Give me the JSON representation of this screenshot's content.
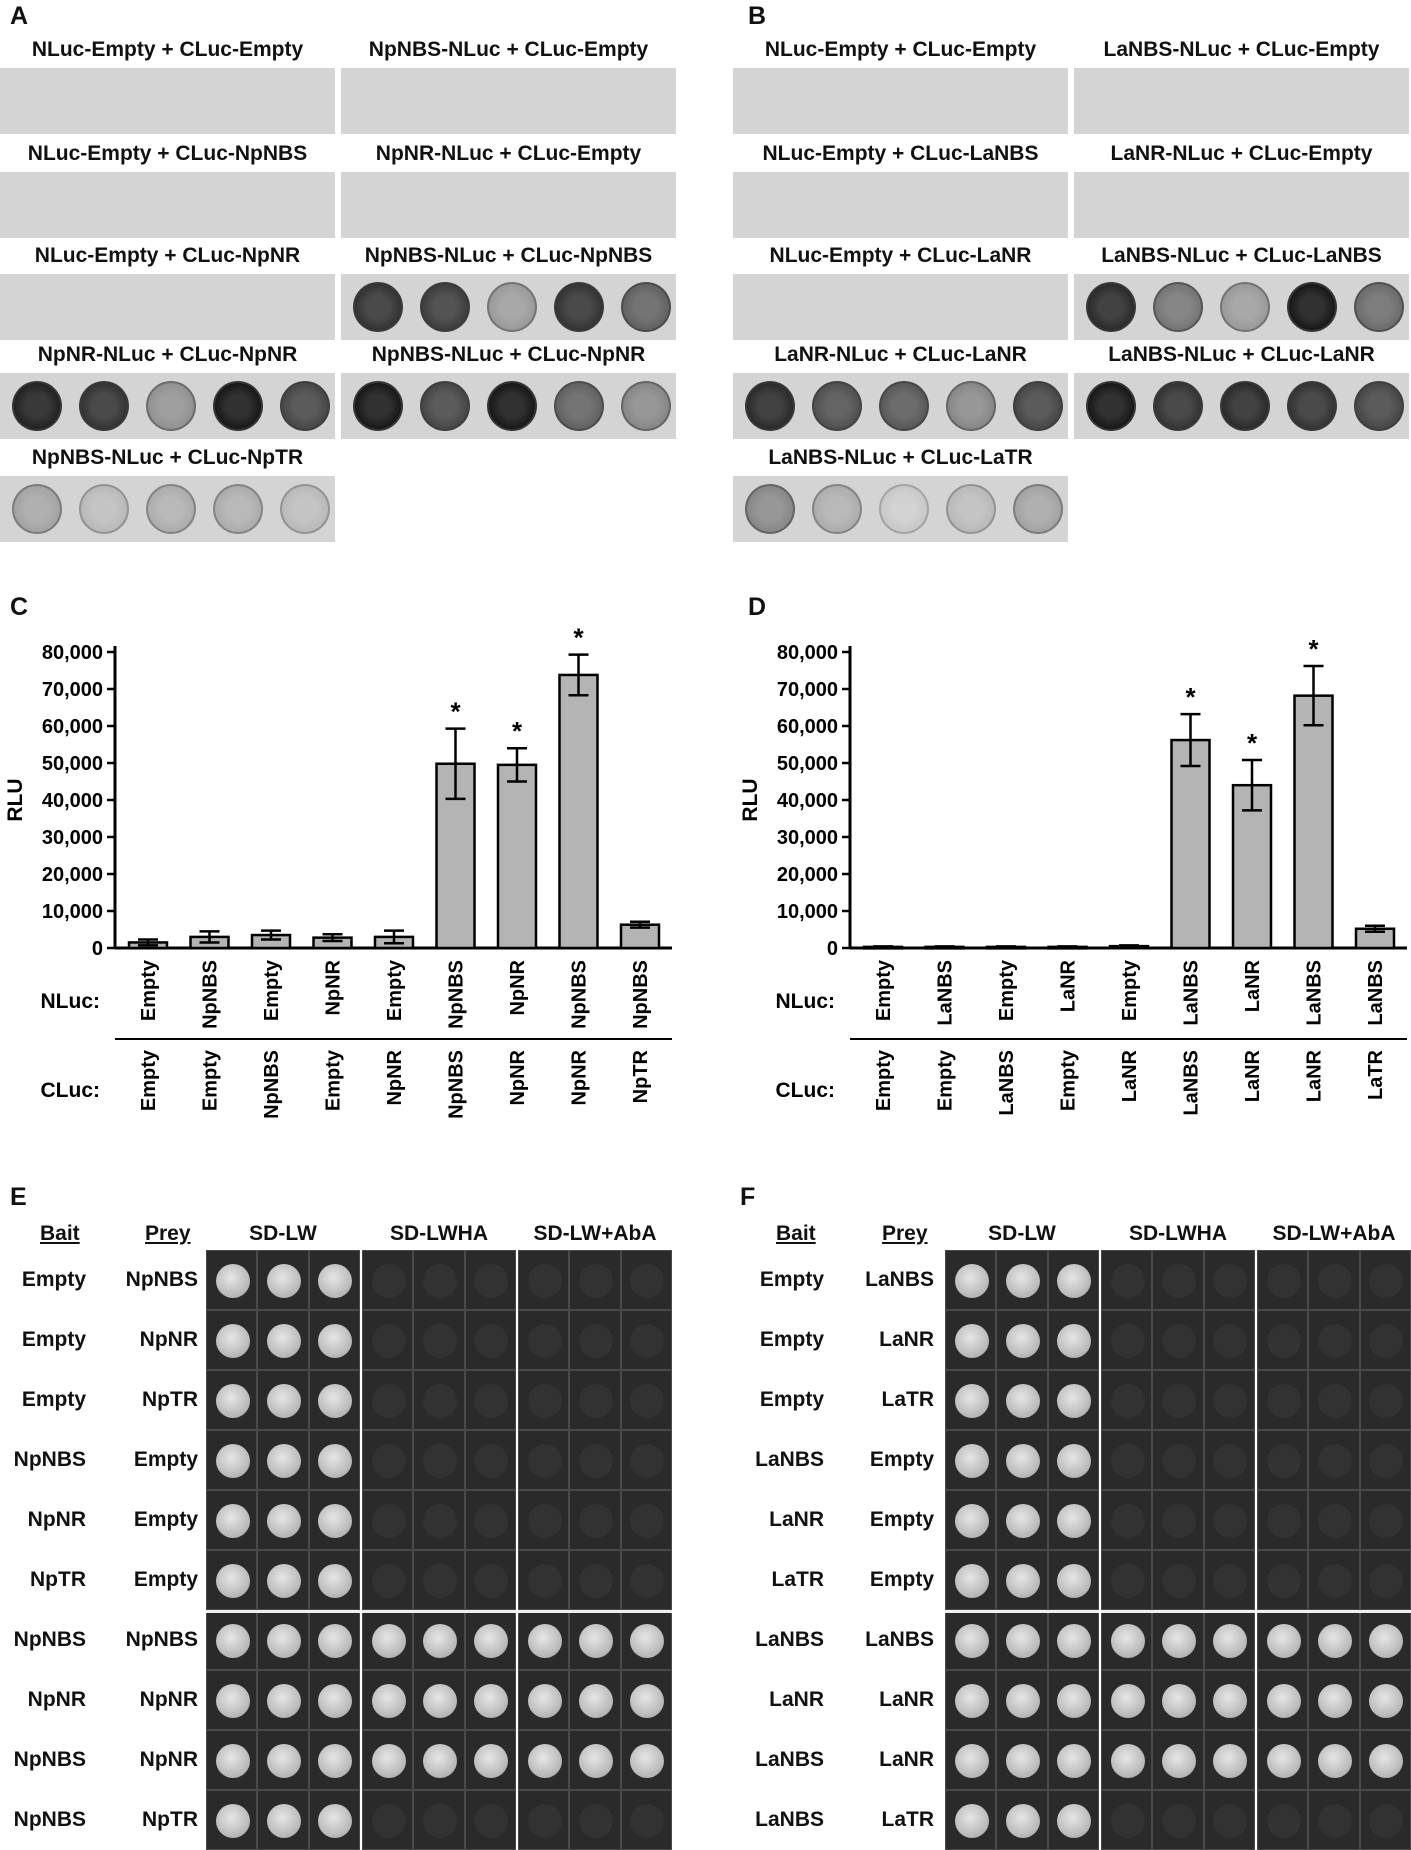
{
  "panels": {
    "A": {
      "letter": "A",
      "blots": [
        {
          "title": "NLuc-Empty + CLuc-Empty",
          "spots": []
        },
        {
          "title": "NpNBS-NLuc + CLuc-Empty",
          "spots": []
        },
        {
          "title": "NLuc-Empty + CLuc-NpNBS",
          "spots": []
        },
        {
          "title": "NpNR-NLuc + CLuc-Empty",
          "spots": []
        },
        {
          "title": "NLuc-Empty + CLuc-NpNR",
          "spots": []
        },
        {
          "title": "NpNBS-NLuc + CLuc-NpNBS",
          "spots": [
            0.8,
            0.75,
            0.25,
            0.8,
            0.55
          ]
        },
        {
          "title": "NpNR-NLuc + CLuc-NpNR",
          "spots": [
            0.9,
            0.8,
            0.3,
            0.95,
            0.7
          ]
        },
        {
          "title": "NpNBS-NLuc + CLuc-NpNR",
          "spots": [
            0.95,
            0.7,
            0.95,
            0.55,
            0.35
          ]
        },
        {
          "title": "NpNBS-NLuc + CLuc-NpTR",
          "spots": [
            0.2,
            0.08,
            0.15,
            0.15,
            0.08
          ]
        }
      ]
    },
    "B": {
      "letter": "B",
      "blots": [
        {
          "title": "NLuc-Empty + CLuc-Empty",
          "spots": []
        },
        {
          "title": "LaNBS-NLuc + CLuc-Empty",
          "spots": []
        },
        {
          "title": "NLuc-Empty + CLuc-LaNBS",
          "spots": []
        },
        {
          "title": "LaNR-NLuc + CLuc-Empty",
          "spots": []
        },
        {
          "title": "NLuc-Empty + CLuc-LaNR",
          "spots": []
        },
        {
          "title": "LaNBS-NLuc + CLuc-LaNBS",
          "spots": [
            0.85,
            0.45,
            0.25,
            0.95,
            0.5
          ]
        },
        {
          "title": "LaNR-NLuc + CLuc-LaNR",
          "spots": [
            0.85,
            0.65,
            0.6,
            0.35,
            0.7
          ]
        },
        {
          "title": "LaNBS-NLuc + CLuc-LaNR",
          "spots": [
            0.95,
            0.8,
            0.85,
            0.8,
            0.7
          ]
        },
        {
          "title": "LaNBS-NLuc + CLuc-LaTR",
          "spots": [
            0.35,
            0.15,
            0.0,
            0.08,
            0.2
          ]
        }
      ]
    },
    "C": {
      "letter": "C"
    },
    "D": {
      "letter": "D"
    },
    "E": {
      "letter": "E",
      "headers": {
        "bait": "Bait",
        "prey": "Prey",
        "media": [
          "SD-LW",
          "SD-LWHA",
          "SD-LW+AbA"
        ]
      },
      "rows": [
        {
          "bait": "Empty",
          "prey": "NpNBS",
          "growth": [
            1,
            0,
            0
          ]
        },
        {
          "bait": "Empty",
          "prey": "NpNR",
          "growth": [
            1,
            0,
            0
          ]
        },
        {
          "bait": "Empty",
          "prey": "NpTR",
          "growth": [
            1,
            0,
            0
          ]
        },
        {
          "bait": "NpNBS",
          "prey": "Empty",
          "growth": [
            1,
            0,
            0
          ]
        },
        {
          "bait": "NpNR",
          "prey": "Empty",
          "growth": [
            1,
            0,
            0
          ]
        },
        {
          "bait": "NpTR",
          "prey": "Empty",
          "growth": [
            1,
            0,
            0
          ]
        },
        {
          "bait": "NpNBS",
          "prey": "NpNBS",
          "growth": [
            1,
            1,
            1
          ]
        },
        {
          "bait": "NpNR",
          "prey": "NpNR",
          "growth": [
            1,
            1,
            1
          ]
        },
        {
          "bait": "NpNBS",
          "prey": "NpNR",
          "growth": [
            1,
            1,
            1
          ]
        },
        {
          "bait": "NpNBS",
          "prey": "NpTR",
          "growth": [
            1,
            0,
            0
          ]
        }
      ]
    },
    "F": {
      "letter": "F",
      "headers": {
        "bait": "Bait",
        "prey": "Prey",
        "media": [
          "SD-LW",
          "SD-LWHA",
          "SD-LW+AbA"
        ]
      },
      "rows": [
        {
          "bait": "Empty",
          "prey": "LaNBS",
          "growth": [
            1,
            0,
            0
          ]
        },
        {
          "bait": "Empty",
          "prey": "LaNR",
          "growth": [
            1,
            0,
            0
          ]
        },
        {
          "bait": "Empty",
          "prey": "LaTR",
          "growth": [
            1,
            0,
            0
          ]
        },
        {
          "bait": "LaNBS",
          "prey": "Empty",
          "growth": [
            1,
            0,
            0
          ]
        },
        {
          "bait": "LaNR",
          "prey": "Empty",
          "growth": [
            1,
            0,
            0
          ]
        },
        {
          "bait": "LaTR",
          "prey": "Empty",
          "growth": [
            1,
            0,
            0
          ]
        },
        {
          "bait": "LaNBS",
          "prey": "LaNBS",
          "growth": [
            1,
            1,
            1
          ]
        },
        {
          "bait": "LaNR",
          "prey": "LaNR",
          "growth": [
            1,
            1,
            1
          ]
        },
        {
          "bait": "LaNBS",
          "prey": "LaNR",
          "growth": [
            1,
            1,
            1
          ]
        },
        {
          "bait": "LaNBS",
          "prey": "LaTR",
          "growth": [
            1,
            0,
            0
          ]
        }
      ]
    }
  },
  "chart_data": [
    {
      "type": "bar",
      "panel": "C",
      "ylabel": "RLU",
      "ylim": [
        0,
        80000
      ],
      "yticks": [
        "0",
        "10,000",
        "20,000",
        "30,000",
        "40,000",
        "50,000",
        "60,000",
        "70,000",
        "80,000"
      ],
      "row_labels": [
        "NLuc:",
        "CLuc:"
      ],
      "nluc": [
        "Empty",
        "NpNBS",
        "Empty",
        "NpNR",
        "Empty",
        "NpNBS",
        "NpNR",
        "NpNBS",
        "NpNBS"
      ],
      "cluc": [
        "Empty",
        "Empty",
        "NpNBS",
        "Empty",
        "NpNR",
        "NpNBS",
        "NpNR",
        "NpNR",
        "NpTR"
      ],
      "values": [
        1500,
        3000,
        3500,
        2800,
        3000,
        49800,
        49500,
        73800,
        6300
      ],
      "errors": [
        800,
        1500,
        1200,
        900,
        1700,
        9500,
        4500,
        5500,
        800
      ],
      "significance": [
        "",
        "",
        "",
        "",
        "",
        "*",
        "*",
        "*",
        ""
      ]
    },
    {
      "type": "bar",
      "panel": "D",
      "ylabel": "RLU",
      "ylim": [
        0,
        80000
      ],
      "yticks": [
        "0",
        "10,000",
        "20,000",
        "30,000",
        "40,000",
        "50,000",
        "60,000",
        "70,000",
        "80,000"
      ],
      "row_labels": [
        "NLuc:",
        "CLuc:"
      ],
      "nluc": [
        "Empty",
        "LaNBS",
        "Empty",
        "LaNR",
        "Empty",
        "LaNBS",
        "LaNR",
        "LaNBS",
        "LaNBS"
      ],
      "cluc": [
        "Empty",
        "Empty",
        "LaNBS",
        "Empty",
        "LaNR",
        "LaNBS",
        "LaNR",
        "LaNR",
        "LaTR"
      ],
      "values": [
        300,
        300,
        300,
        300,
        500,
        56200,
        44000,
        68200,
        5200
      ],
      "errors": [
        150,
        150,
        150,
        150,
        200,
        7000,
        6800,
        8000,
        800
      ],
      "significance": [
        "",
        "",
        "",
        "",
        "",
        "*",
        "*",
        "*",
        ""
      ]
    }
  ]
}
